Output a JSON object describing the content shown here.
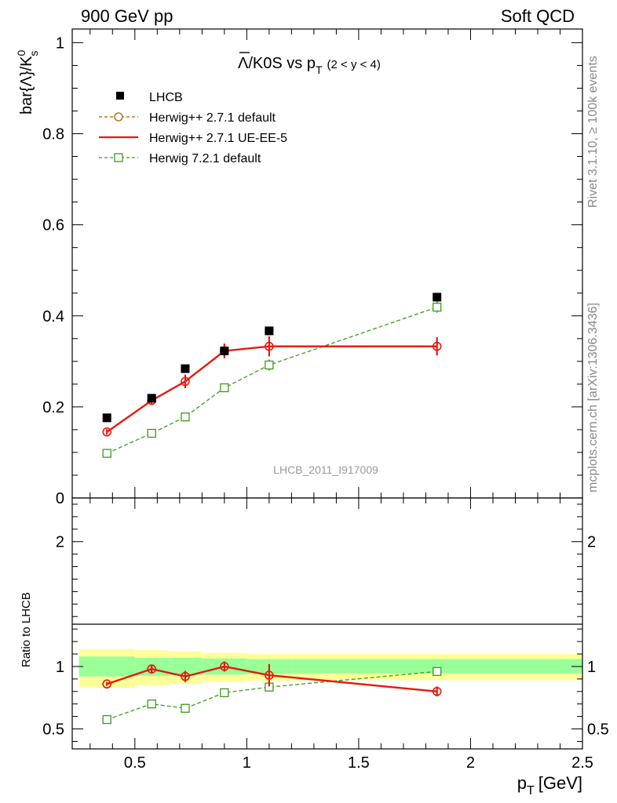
{
  "header": {
    "left": "900 GeV pp",
    "right": "Soft QCD"
  },
  "side_labels": {
    "rivet": "Rivet 3.1.10, ≥ 100k events",
    "mcplots": "mcplots.cern.ch [arXiv:1306.3436]"
  },
  "colors": {
    "data": "#000000",
    "herwig_pp_default": "#b35900",
    "herwig_pp_ueee5": "#e8180c",
    "herwig7": "#3a9a1a",
    "band_inner": "#99ff99",
    "band_outer": "#ffff99"
  },
  "chart_data": [
    {
      "type": "scatter",
      "panel": "main",
      "title": "Λ̅/K0S vs p_T (2 < y < 4)",
      "title_main": "/K0S vs p",
      "title_lambda": "Λ",
      "title_sub": "T",
      "title_range": "(2 < y < 4)",
      "ylabel": "bar{Λ}/K",
      "ylabel_sup": "0",
      "ylabel_sub": "s",
      "watermark": "LHCB_2011_I917009",
      "xlim": [
        0.22,
        2.5
      ],
      "ylim": [
        0,
        1.03
      ],
      "y_ticks": [
        0,
        0.2,
        0.4,
        0.6,
        0.8,
        1
      ],
      "y_tick_labels": [
        "0",
        "0.2",
        "0.4",
        "0.6",
        "0.8",
        "1"
      ],
      "legend_position": "top-left",
      "series": [
        {
          "name": "LHCB",
          "x": [
            0.375,
            0.575,
            0.725,
            0.9,
            1.1,
            1.85
          ],
          "y": [
            0.176,
            0.219,
            0.284,
            0.323,
            0.367,
            0.441
          ]
        },
        {
          "name": "Herwig++ 2.7.1 default",
          "x": [
            0.375,
            0.575,
            0.725,
            0.9,
            1.1,
            1.85
          ],
          "y": [
            0.145,
            0.214,
            0.256,
            0.323,
            0.333,
            0.333
          ]
        },
        {
          "name": "Herwig++ 2.7.1 UE-EE-5",
          "x": [
            0.375,
            0.575,
            0.725,
            0.9,
            1.1,
            1.85
          ],
          "y": [
            0.145,
            0.214,
            0.256,
            0.323,
            0.333,
            0.333
          ],
          "yerr": [
            0.006,
            0.008,
            0.015,
            0.016,
            0.022,
            0.02
          ]
        },
        {
          "name": "Herwig 7.2.1 default",
          "x": [
            0.375,
            0.575,
            0.725,
            0.9,
            1.1,
            1.85
          ],
          "y": [
            0.098,
            0.142,
            0.178,
            0.242,
            0.292,
            0.419
          ],
          "yerr": [
            0.004,
            0.006,
            0.007,
            0.008,
            0.012,
            0.012
          ]
        }
      ]
    },
    {
      "type": "line",
      "panel": "ratio",
      "ylabel": "Ratio to LHCB",
      "xlabel": "p",
      "xlabel_sub": "T",
      "xlabel_unit": "[GeV]",
      "xlim": [
        0.22,
        2.5
      ],
      "ylim": [
        0.34,
        2.35
      ],
      "x_ticks": [
        0.5,
        1,
        1.5,
        2,
        2.5
      ],
      "x_tick_labels": [
        "0.5",
        "1",
        "1.5",
        "2",
        "2.5"
      ],
      "y_ticks": [
        0.5,
        1,
        2
      ],
      "y_tick_labels": [
        "0.5",
        "1",
        "2"
      ],
      "bands": {
        "bins": [
          [
            0.25,
            0.5
          ],
          [
            0.5,
            0.65
          ],
          [
            0.65,
            0.8
          ],
          [
            0.8,
            1.0
          ],
          [
            1.0,
            1.2
          ],
          [
            1.2,
            2.5
          ]
        ],
        "inner": [
          [
            0.92,
            1.08
          ],
          [
            0.925,
            1.07
          ],
          [
            0.93,
            1.07
          ],
          [
            0.935,
            1.065
          ],
          [
            0.94,
            1.06
          ],
          [
            0.945,
            1.06
          ]
        ],
        "outer": [
          [
            0.83,
            1.14
          ],
          [
            0.85,
            1.13
          ],
          [
            0.86,
            1.12
          ],
          [
            0.875,
            1.11
          ],
          [
            0.885,
            1.1
          ],
          [
            0.89,
            1.1
          ]
        ]
      },
      "series": [
        {
          "name": "Herwig++ 2.7.1 UE-EE-5",
          "x": [
            0.375,
            0.575,
            0.725,
            0.9,
            1.1,
            1.85
          ],
          "y": [
            0.86,
            0.98,
            0.92,
            1.0,
            0.93,
            0.8
          ],
          "yerr": [
            0.015,
            0.03,
            0.045,
            0.04,
            0.09,
            0.04
          ]
        },
        {
          "name": "Herwig 7.2.1 default",
          "x": [
            0.375,
            0.575,
            0.725,
            0.9,
            1.1,
            1.85
          ],
          "y": [
            0.575,
            0.7,
            0.665,
            0.79,
            0.835,
            0.96
          ],
          "yerr": [
            0.01,
            0.02,
            0.02,
            0.02,
            0.03,
            0.02
          ]
        }
      ]
    }
  ]
}
